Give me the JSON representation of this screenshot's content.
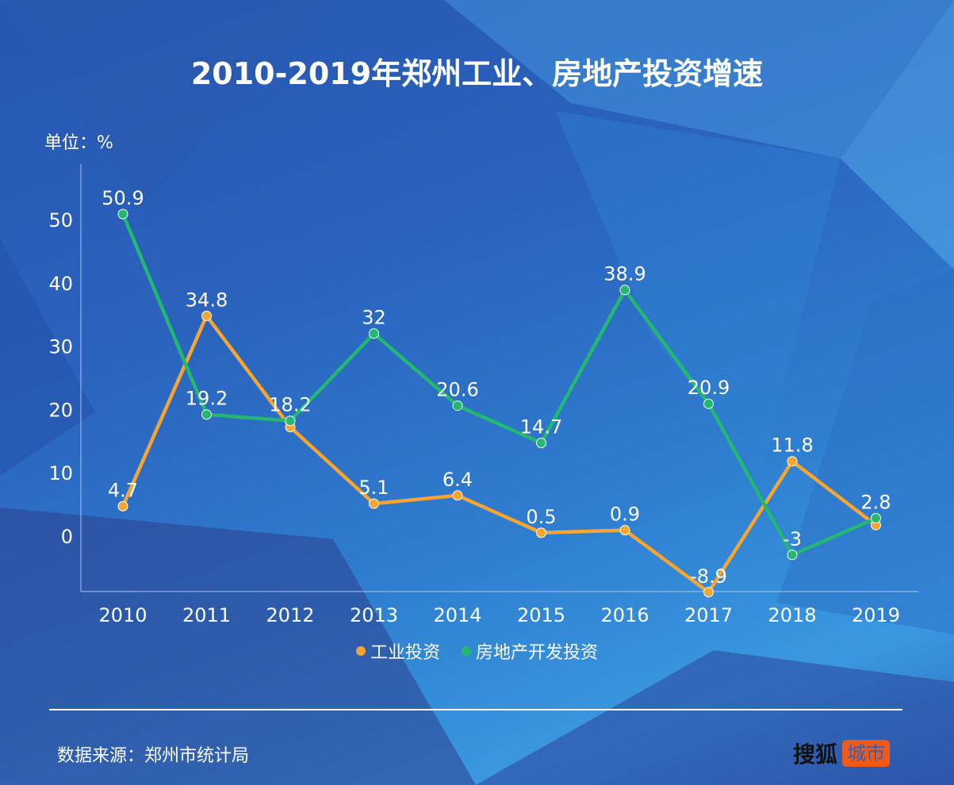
{
  "title": "2010-2019年郑州工业、房地产投资增速",
  "unit_label": "单位：%",
  "source": "数据来源：郑州市统计局",
  "logo": {
    "brand": "搜狐",
    "tag": "城市"
  },
  "colors": {
    "industry": "#f5a530",
    "realestate": "#22b872",
    "background": "#2a63be",
    "logo_tag": "#ec5a1c"
  },
  "chart_data": {
    "type": "line",
    "title": "2010-2019年郑州工业、房地产投资增速",
    "ylabel": "单位：%",
    "categories": [
      "2010",
      "2011",
      "2012",
      "2013",
      "2014",
      "2015",
      "2016",
      "2017",
      "2018",
      "2019"
    ],
    "yticks": [
      0,
      10,
      20,
      30,
      40,
      50
    ],
    "ylim": [
      -8.8,
      58.8
    ],
    "grid": false,
    "legend": "bottom",
    "series": [
      {
        "name": "工业投资",
        "color": "#f5a530",
        "values": [
          4.7,
          34.8,
          17.2,
          5.1,
          6.4,
          0.5,
          0.9,
          -8.9,
          11.8,
          1.7
        ],
        "labels": [
          "4.7",
          "34.8",
          "",
          "5.1",
          "6.4",
          "0.5",
          "0.9",
          "-8.9",
          "11.8",
          ""
        ]
      },
      {
        "name": "房地产开发投资",
        "color": "#22b872",
        "values": [
          50.9,
          19.2,
          18.2,
          32,
          20.6,
          14.7,
          38.9,
          20.9,
          -3,
          2.8
        ],
        "labels": [
          "50.9",
          "19.2",
          "18.2",
          "32",
          "20.6",
          "14.7",
          "38.9",
          "20.9",
          "-3",
          "2.8"
        ]
      }
    ]
  }
}
